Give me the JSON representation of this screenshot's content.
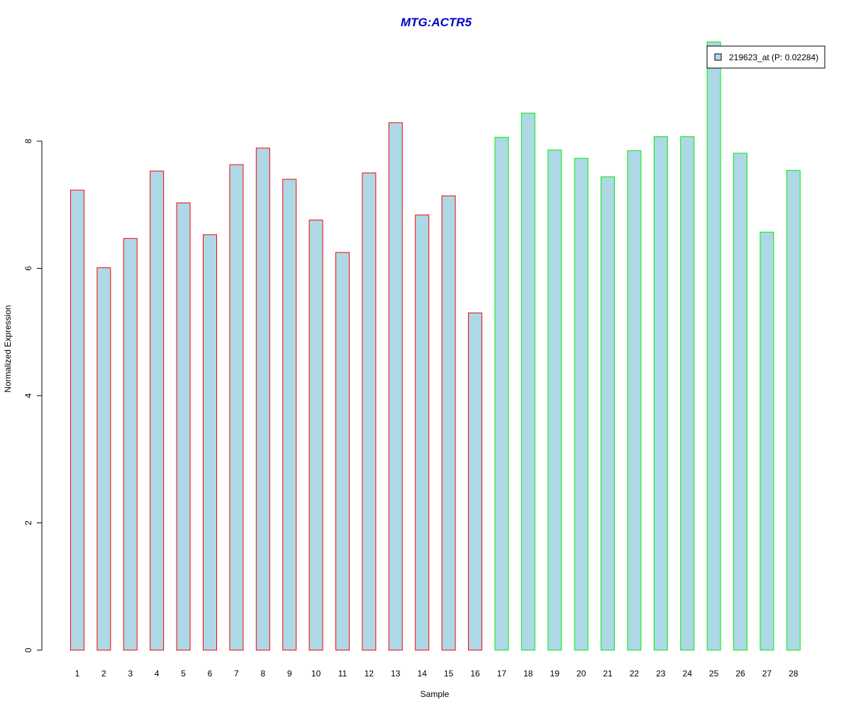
{
  "chart_data": {
    "type": "bar",
    "title": "MTG:ACTR5",
    "xlabel": "Sample",
    "ylabel": "Normalized Expression",
    "categories": [
      "1",
      "2",
      "3",
      "4",
      "5",
      "6",
      "7",
      "8",
      "9",
      "10",
      "11",
      "12",
      "13",
      "14",
      "15",
      "16",
      "17",
      "18",
      "19",
      "20",
      "21",
      "22",
      "23",
      "24",
      "25",
      "26",
      "27",
      "28"
    ],
    "values": [
      7.23,
      6.01,
      6.47,
      7.53,
      7.03,
      6.53,
      7.63,
      7.89,
      7.4,
      6.76,
      6.25,
      7.5,
      8.29,
      6.84,
      7.14,
      5.3,
      8.06,
      8.44,
      7.86,
      7.73,
      7.44,
      7.85,
      8.07,
      8.07,
      9.56,
      7.81,
      6.57,
      7.54
    ],
    "groups": [
      1,
      1,
      1,
      1,
      1,
      1,
      1,
      1,
      1,
      1,
      1,
      1,
      1,
      1,
      1,
      1,
      2,
      2,
      2,
      2,
      2,
      2,
      2,
      2,
      2,
      2,
      2,
      2
    ],
    "group_colors": {
      "1": "#ff0000",
      "2": "#00ee00"
    },
    "bar_fill": "#add8e6",
    "title_color": "#0000cc",
    "yticks": [
      "0",
      "2",
      "4",
      "6",
      "8"
    ],
    "ylim": [
      0,
      9.56
    ],
    "grid": false,
    "legend": {
      "placement": "top-right",
      "entries": [
        {
          "label": "219623_at (P: 0.02284)",
          "color": "#add8e6"
        }
      ]
    }
  }
}
